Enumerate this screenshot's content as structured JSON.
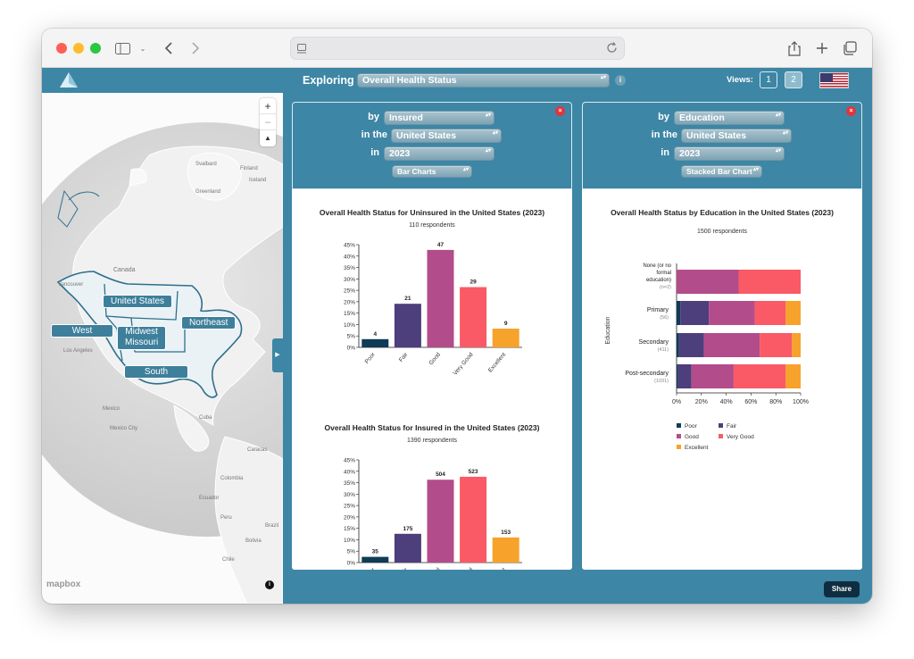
{
  "browser": {
    "icons": [
      "close-dot",
      "minimize-dot",
      "zoom-dot",
      "sidebar-icon",
      "chevron-down-icon",
      "back-icon",
      "forward-icon",
      "page-icon",
      "reload-icon",
      "share-icon",
      "plus-icon",
      "tabs-icon"
    ]
  },
  "header": {
    "exploring_label": "Exploring",
    "topic": "Overall Health Status",
    "info": "i",
    "views_label": "Views:",
    "views": [
      "1",
      "2"
    ],
    "active_view": "2"
  },
  "map": {
    "zoom_in": "+",
    "zoom_out": "−",
    "compass": "▲",
    "attribution": "mapbox",
    "info": "i",
    "regions": [
      "United States",
      "West",
      "Midwest\nMissouri",
      "Northeast",
      "South"
    ],
    "place_labels": [
      "Svalbard",
      "Finland",
      "Iceland",
      "Greenland",
      "Canada",
      "Vancouver",
      "Los Angeles",
      "Mexico",
      "Mexico City",
      "Cuba",
      "Caracas",
      "Colombia",
      "Ecuador",
      "Peru",
      "Bolivia",
      "Brazil",
      "Chile"
    ]
  },
  "panel_left": {
    "by_label": "by",
    "by_value": "Insured",
    "in_the_label": "in the",
    "in_the_value": "United States",
    "in_label": "in",
    "in_value": "2023",
    "chart_type": "Bar Charts",
    "close": "×"
  },
  "panel_right": {
    "by_label": "by",
    "by_value": "Education",
    "in_the_label": "in the",
    "in_the_value": "United States",
    "in_label": "in",
    "in_value": "2023",
    "chart_type": "Stacked Bar Chart",
    "close": "×"
  },
  "colors": {
    "Poor": "#0f3b56",
    "Fair": "#4d3e7c",
    "Good": "#b34c8b",
    "Very Good": "#f95a65",
    "Excellent": "#f7a22b"
  },
  "share_label": "Share",
  "chart_data": [
    {
      "type": "bar",
      "title": "Overall Health Status for Uninsured in the United States (2023)",
      "subtitle": "110 respondents",
      "categories": [
        "Poor",
        "Fair",
        "Good",
        "Very Good",
        "Excellent"
      ],
      "values_pct": [
        3.6,
        19.1,
        42.7,
        26.4,
        8.2
      ],
      "labels": [
        "4",
        "21",
        "47",
        "29",
        "9"
      ],
      "yticks": [
        "0%",
        "5%",
        "10%",
        "15%",
        "20%",
        "25%",
        "30%",
        "35%",
        "40%",
        "45%"
      ],
      "ylim": [
        0,
        45
      ]
    },
    {
      "type": "bar",
      "title": "Overall Health Status for Insured in the United States (2023)",
      "subtitle": "1390 respondents",
      "categories": [
        "Poor",
        "Fair",
        "Good",
        "Very Good",
        "Excellent"
      ],
      "values_pct": [
        2.5,
        12.6,
        36.3,
        37.6,
        11.0
      ],
      "labels": [
        "35",
        "175",
        "504",
        "523",
        "153"
      ],
      "yticks": [
        "0%",
        "5%",
        "10%",
        "15%",
        "20%",
        "25%",
        "30%",
        "35%",
        "40%",
        "45%"
      ],
      "ylim": [
        0,
        45
      ]
    },
    {
      "type": "bar",
      "orientation": "horizontal-stacked",
      "title": "Overall Health Status by Education in the United States (2023)",
      "subtitle": "1500 respondents",
      "ylabel": "Education",
      "categories": [
        {
          "name": "None (or no formal education)",
          "n": "(n=2)"
        },
        {
          "name": "Primary",
          "n": "(56)"
        },
        {
          "name": "Secondary",
          "n": "(411)"
        },
        {
          "name": "Post-secondary",
          "n": "(1031)"
        }
      ],
      "series": [
        {
          "name": "Poor",
          "values": [
            0,
            3,
            2,
            1
          ]
        },
        {
          "name": "Fair",
          "values": [
            0,
            23,
            20,
            11
          ]
        },
        {
          "name": "Good",
          "values": [
            50,
            37,
            45,
            34
          ]
        },
        {
          "name": "Very Good",
          "values": [
            50,
            25,
            26,
            42
          ]
        },
        {
          "name": "Excellent",
          "values": [
            0,
            12,
            7,
            12
          ]
        }
      ],
      "xticks": [
        "0%",
        "20%",
        "40%",
        "60%",
        "80%",
        "100%"
      ],
      "xlim": [
        0,
        100
      ],
      "legend": [
        "Poor",
        "Fair",
        "Good",
        "Very Good",
        "Excellent"
      ]
    }
  ]
}
